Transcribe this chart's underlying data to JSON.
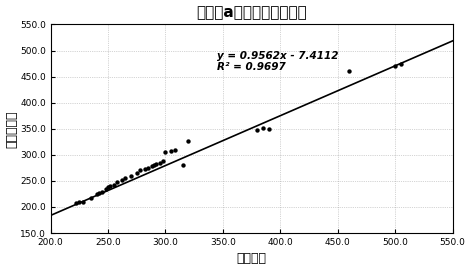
{
  "title": "脂蛋白a检测试剂盒相关性",
  "xlabel": "进口试剂",
  "ylabel": "本发明试剂",
  "xlim": [
    200.0,
    550.0
  ],
  "ylim": [
    150.0,
    550.0
  ],
  "xticks": [
    200.0,
    250.0,
    300.0,
    350.0,
    400.0,
    450.0,
    500.0,
    550.0
  ],
  "yticks": [
    150.0,
    200.0,
    250.0,
    300.0,
    350.0,
    400.0,
    450.0,
    500.0,
    550.0
  ],
  "equation": "y = 0.9562x - 7.4112",
  "r_squared": "R² = 0.9697",
  "slope": 0.9562,
  "intercept": -7.4112,
  "scatter_color": "#000000",
  "line_color": "#000000",
  "background_color": "#ffffff",
  "scatter_x": [
    222,
    225,
    228,
    235,
    240,
    242,
    245,
    248,
    250,
    252,
    255,
    258,
    262,
    265,
    270,
    275,
    278,
    282,
    285,
    288,
    290,
    292,
    295,
    298,
    300,
    305,
    308,
    315,
    320,
    380,
    385,
    390,
    460,
    500,
    505
  ],
  "scatter_y": [
    207,
    209,
    210,
    218,
    224,
    226,
    228,
    235,
    238,
    240,
    243,
    248,
    252,
    255,
    260,
    265,
    270,
    272,
    275,
    278,
    280,
    282,
    285,
    288,
    305,
    308,
    310,
    280,
    327,
    348,
    352,
    350,
    460,
    470,
    475
  ]
}
